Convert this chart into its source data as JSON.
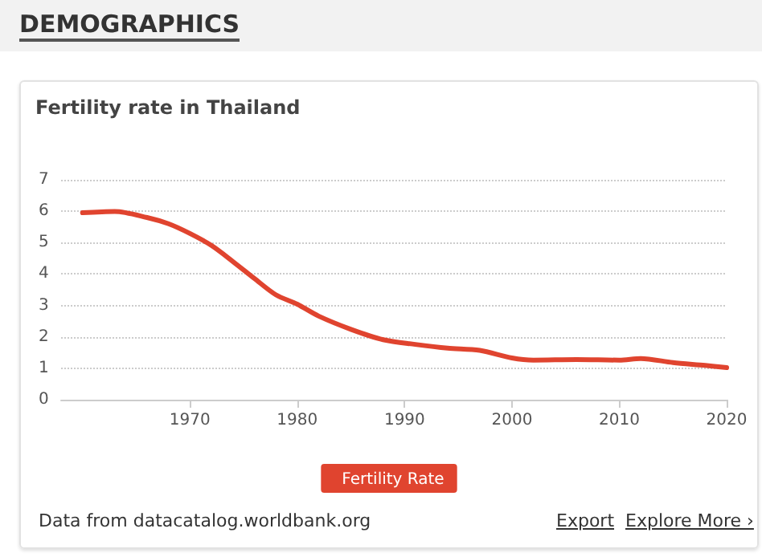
{
  "chart_data": {
    "type": "line",
    "title": "Fertility rate in Thailand",
    "annotations": [
      "DEMOGRAPHICS",
      "Data from datacatalog.worldbank.org",
      "Export",
      "Explore More ›"
    ],
    "x": [
      1960,
      1963,
      1966,
      1968,
      1970,
      1972,
      1974,
      1976,
      1978,
      1980,
      1982,
      1985,
      1988,
      1991,
      1994,
      1997,
      2000,
      2002,
      2006,
      2010,
      2012,
      2015,
      2018,
      2020
    ],
    "series": [
      {
        "name": "Fertility Rate",
        "color": "#e0442f",
        "values": [
          5.95,
          5.99,
          5.8,
          5.6,
          5.29,
          4.91,
          4.4,
          3.86,
          3.34,
          3.04,
          2.66,
          2.24,
          1.91,
          1.76,
          1.64,
          1.57,
          1.33,
          1.26,
          1.28,
          1.26,
          1.31,
          1.18,
          1.09,
          1.02
        ]
      }
    ],
    "xlim": [
      1958,
      2020
    ],
    "xticks": [
      1970,
      1980,
      1990,
      2000,
      2010,
      2020
    ],
    "ylim": [
      0,
      7
    ],
    "yticks": [
      0,
      1,
      2,
      3,
      4,
      5,
      6,
      7
    ],
    "grid": "y",
    "legend": "bottom",
    "marker": "none",
    "line_style": "solid"
  }
}
